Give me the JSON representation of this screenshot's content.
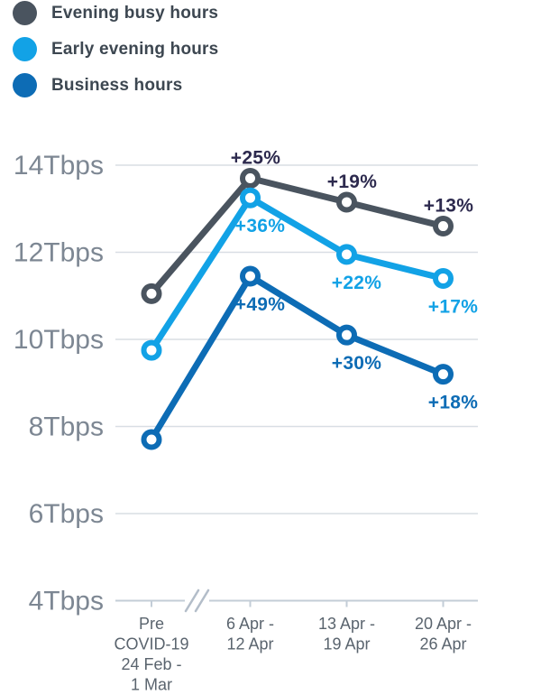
{
  "legend": {
    "items": [
      {
        "label": "Evening busy hours",
        "color": "#4a545f"
      },
      {
        "label": "Early evening hours",
        "color": "#12a2e6"
      },
      {
        "label": "Business hours",
        "color": "#0d6cb5"
      }
    ]
  },
  "chart_data": {
    "type": "line",
    "title": "",
    "xlabel": "",
    "ylabel": "Tbps",
    "ylim": [
      4,
      14
    ],
    "grid": true,
    "legend_position": "top-left",
    "x_axis_break_after_first_category": true,
    "y_ticks": [
      "14Tbps",
      "12Tbps",
      "10Tbps",
      "8Tbps",
      "6Tbps",
      "4Tbps"
    ],
    "y_tick_values": [
      14,
      12,
      10,
      8,
      6,
      4
    ],
    "categories": [
      [
        "Pre",
        "COVID-19",
        "24 Feb -",
        "1 Mar"
      ],
      [
        "6 Apr -",
        "12 Apr"
      ],
      [
        "13 Apr -",
        "19 Apr"
      ],
      [
        "20 Apr -",
        "26 Apr"
      ]
    ],
    "series": [
      {
        "name": "Evening busy hours",
        "color": "#4a545f",
        "label_color": "#2d2a4e",
        "label_side": "above",
        "values": [
          11.05,
          13.7,
          13.15,
          12.6
        ],
        "point_labels": [
          null,
          "+25%",
          "+19%",
          "+13%"
        ]
      },
      {
        "name": "Early evening hours",
        "color": "#12a2e6",
        "label_color": "#12a2e6",
        "label_side": "below",
        "values": [
          9.75,
          13.25,
          11.95,
          11.4
        ],
        "point_labels": [
          null,
          "+36%",
          "+22%",
          "+17%"
        ]
      },
      {
        "name": "Business hours",
        "color": "#0d6cb5",
        "label_color": "#0d6cb5",
        "label_side": "below",
        "values": [
          7.7,
          11.45,
          10.1,
          9.2
        ],
        "point_labels": [
          null,
          "+49%",
          "+30%",
          "+18%"
        ]
      }
    ]
  },
  "colors": {
    "background": "#ffffff",
    "gridline": "#d9dee4",
    "axis": "#c3cdd7",
    "axis_break": "#b3bdc9",
    "y_tick_text": "#7d8793",
    "x_tick_text": "#5a646e",
    "marker_fill": "#ffffff"
  }
}
